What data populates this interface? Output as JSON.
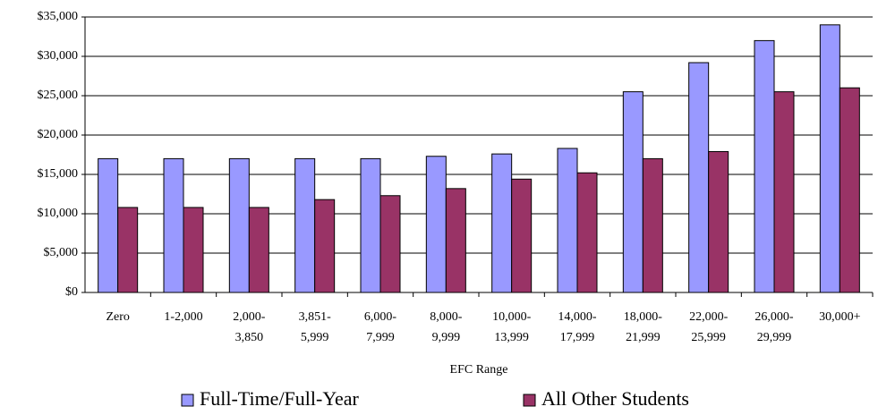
{
  "chart_data": {
    "type": "bar",
    "x_label": "EFC Range",
    "categories": [
      "Zero",
      "1-2,000",
      "2,000-\n3,850",
      "3,851-\n5,999",
      "6,000-\n7,999",
      "8,000-\n9,999",
      "10,000-\n13,999",
      "14,000-\n17,999",
      "18,000-\n21,999",
      "22,000-\n25,999",
      "26,000-\n29,999",
      "30,000+"
    ],
    "series": [
      {
        "name": "Full-Time/Full-Year",
        "color": "#9999ff",
        "values": [
          17000,
          17000,
          17000,
          17000,
          17000,
          17300,
          17600,
          18300,
          25500,
          29200,
          32000,
          34000
        ]
      },
      {
        "name": "All Other Students",
        "color": "#993366",
        "values": [
          10800,
          10800,
          10800,
          11800,
          12300,
          13200,
          14400,
          15200,
          17000,
          17900,
          25500,
          26000
        ]
      }
    ],
    "ylim": [
      0,
      35000
    ],
    "yticks": [
      {
        "value": 0,
        "label": "$0"
      },
      {
        "value": 5000,
        "label": "$5,000"
      },
      {
        "value": 10000,
        "label": "$10,000"
      },
      {
        "value": 15000,
        "label": "$15,000"
      },
      {
        "value": 20000,
        "label": "$20,000"
      },
      {
        "value": 25000,
        "label": "$25,000"
      },
      {
        "value": 30000,
        "label": "$30,000"
      },
      {
        "value": 35000,
        "label": "$35,000"
      }
    ],
    "grid": true,
    "legend": "bottom"
  }
}
